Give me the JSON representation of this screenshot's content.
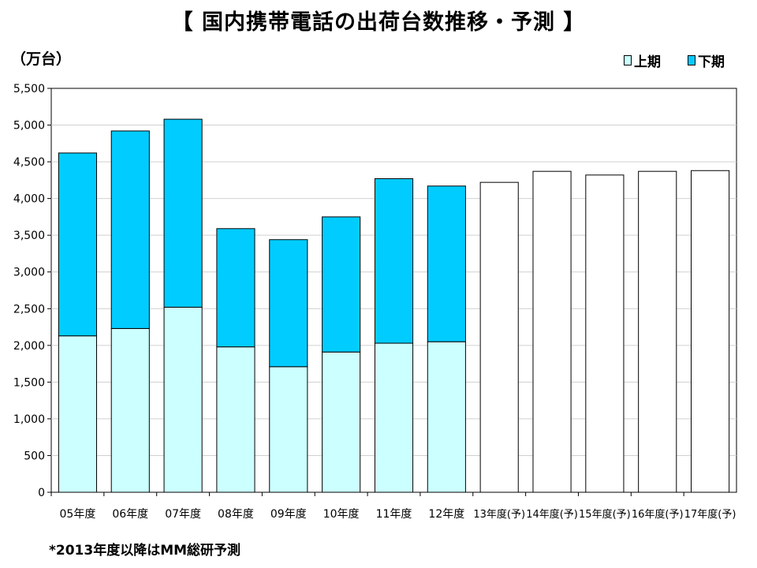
{
  "title": "【 国内携帯電話の出荷台数推移・予測 】",
  "unit_label": "（万台）",
  "footnote": "*2013年度以降はMM総研予測",
  "colors": {
    "first_half": "#ccffff",
    "second_half": "#00ccff",
    "forecast": "#ffffff",
    "grid": "#d0d0d0"
  },
  "legend": [
    {
      "label": "上期",
      "color": "#ccffff"
    },
    {
      "label": "下期",
      "color": "#00ccff"
    }
  ],
  "chart_data": {
    "type": "bar",
    "stacked": true,
    "title": "【 国内携帯電話の出荷台数推移・予測 】",
    "ylabel": "（万台）",
    "ylim": [
      0,
      5500
    ],
    "yticks": [
      "0",
      "500",
      "1,000",
      "1,500",
      "2,000",
      "2,500",
      "3,000",
      "3,500",
      "4,000",
      "4,500",
      "5,000",
      "5,500"
    ],
    "grid": true,
    "legend_position": "top-right",
    "categories": [
      "05年度",
      "06年度",
      "07年度",
      "08年度",
      "09年度",
      "10年度",
      "11年度",
      "12年度",
      "13年度(予)",
      "14年度(予)",
      "15年度(予)",
      "16年度(予)",
      "17年度(予)"
    ],
    "series": [
      {
        "name": "上期",
        "values": [
          2130,
          2230,
          2520,
          1980,
          1710,
          1910,
          2030,
          2050,
          null,
          null,
          null,
          null,
          null
        ]
      },
      {
        "name": "下期",
        "values": [
          2490,
          2690,
          2560,
          1610,
          1730,
          1840,
          2240,
          2120,
          null,
          null,
          null,
          null,
          null
        ]
      }
    ],
    "forecast_totals": [
      null,
      null,
      null,
      null,
      null,
      null,
      null,
      null,
      4220,
      4370,
      4320,
      4370,
      4380
    ]
  }
}
